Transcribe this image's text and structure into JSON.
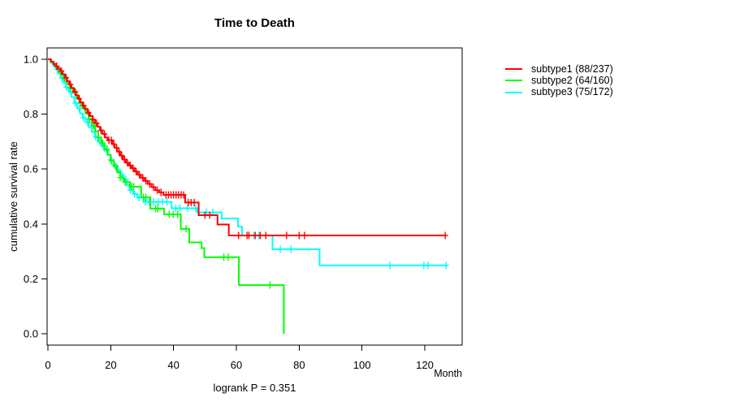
{
  "title": "Time to Death",
  "y_axis_label": "cumulative survival rate",
  "x_axis_label": "Month",
  "footnote": "logrank P = 0.351",
  "colors": {
    "axis": "#000000",
    "background": "#ffffff"
  },
  "chart_data": {
    "type": "line",
    "subtype": "kaplan-meier-step-survival",
    "title": "Time to Death",
    "xlabel": "Month",
    "ylabel": "cumulative survival rate",
    "xlim": [
      0,
      127
    ],
    "ylim": [
      0.0,
      1.0
    ],
    "grid": false,
    "legend_position": "right-outside",
    "x_ticks": [
      {
        "v": 0,
        "label": "0"
      },
      {
        "v": 20,
        "label": "20"
      },
      {
        "v": 40,
        "label": "40"
      },
      {
        "v": 60,
        "label": "60"
      },
      {
        "v": 80,
        "label": "80"
      },
      {
        "v": 100,
        "label": "100"
      },
      {
        "v": 120,
        "label": "120"
      }
    ],
    "y_ticks": [
      {
        "v": 0.0,
        "label": "0.0"
      },
      {
        "v": 0.2,
        "label": "0.2"
      },
      {
        "v": 0.4,
        "label": "0.4"
      },
      {
        "v": 0.6,
        "label": "0.6"
      },
      {
        "v": 0.8,
        "label": "0.8"
      },
      {
        "v": 1.0,
        "label": "1.0"
      }
    ],
    "annotation": "logrank P = 0.351",
    "series": [
      {
        "name": "subtype1 (88/237)",
        "events": "88/237",
        "color": "#FF0000",
        "points": [
          [
            0,
            1.0
          ],
          [
            0.9,
            0.992
          ],
          [
            1.7,
            0.983
          ],
          [
            2.5,
            0.975
          ],
          [
            3.2,
            0.966
          ],
          [
            4,
            0.957
          ],
          [
            4.7,
            0.945
          ],
          [
            5.4,
            0.933
          ],
          [
            6.1,
            0.92
          ],
          [
            6.8,
            0.908
          ],
          [
            7.5,
            0.895
          ],
          [
            8.2,
            0.882
          ],
          [
            8.9,
            0.869
          ],
          [
            9.6,
            0.856
          ],
          [
            10.3,
            0.844
          ],
          [
            11,
            0.831
          ],
          [
            11.8,
            0.818
          ],
          [
            12.6,
            0.806
          ],
          [
            13.4,
            0.793
          ],
          [
            14.2,
            0.78
          ],
          [
            15,
            0.767
          ],
          [
            15.8,
            0.754
          ],
          [
            16.6,
            0.741
          ],
          [
            17.4,
            0.728
          ],
          [
            18.2,
            0.715
          ],
          [
            19,
            0.705
          ],
          [
            20.5,
            0.691
          ],
          [
            21.3,
            0.677
          ],
          [
            22.1,
            0.663
          ],
          [
            23,
            0.649
          ],
          [
            23.9,
            0.635
          ],
          [
            24.8,
            0.623
          ],
          [
            25.7,
            0.613
          ],
          [
            26.6,
            0.603
          ],
          [
            27.6,
            0.591
          ],
          [
            28.6,
            0.579
          ],
          [
            29.6,
            0.568
          ],
          [
            30.7,
            0.557
          ],
          [
            31.8,
            0.546
          ],
          [
            33,
            0.534
          ],
          [
            34.2,
            0.523
          ],
          [
            35.4,
            0.515
          ],
          [
            36.8,
            0.506
          ],
          [
            43.7,
            0.478
          ],
          [
            48,
            0.432
          ],
          [
            54,
            0.398
          ],
          [
            57.6,
            0.358
          ],
          [
            126.5,
            0.358
          ]
        ],
        "censor_times": [
          2.8,
          4.3,
          5.8,
          7.2,
          8.6,
          10,
          11.4,
          12.9,
          14.4,
          15.5,
          16.9,
          18,
          19.4,
          20.2,
          21,
          21.9,
          22.7,
          23.5,
          24.4,
          25.3,
          26.2,
          27.1,
          28.1,
          29.1,
          30.2,
          31.2,
          32.4,
          33.6,
          34.8,
          36,
          37.6,
          38.4,
          39.2,
          40,
          40.8,
          41.6,
          42.4,
          43.2,
          44.7,
          45.6,
          46.6,
          50,
          51.5,
          60.7,
          63.4,
          64,
          66,
          67.6,
          69.4,
          76,
          80,
          81.7,
          126.5
        ]
      },
      {
        "name": "subtype2 (64/160)",
        "events": "64/160",
        "color": "#00FF00",
        "points": [
          [
            0,
            1.0
          ],
          [
            1,
            0.988
          ],
          [
            2,
            0.975
          ],
          [
            3,
            0.961
          ],
          [
            4,
            0.946
          ],
          [
            5,
            0.93
          ],
          [
            6,
            0.913
          ],
          [
            7,
            0.896
          ],
          [
            8,
            0.878
          ],
          [
            9,
            0.859
          ],
          [
            10,
            0.84
          ],
          [
            11,
            0.821
          ],
          [
            12,
            0.802
          ],
          [
            13,
            0.782
          ],
          [
            14,
            0.759
          ],
          [
            15,
            0.737
          ],
          [
            16,
            0.715
          ],
          [
            17,
            0.694
          ],
          [
            18,
            0.673
          ],
          [
            19,
            0.652
          ],
          [
            20,
            0.631
          ],
          [
            21,
            0.61
          ],
          [
            22,
            0.589
          ],
          [
            23,
            0.569
          ],
          [
            24.2,
            0.553
          ],
          [
            26.1,
            0.536
          ],
          [
            29.7,
            0.497
          ],
          [
            32.6,
            0.456
          ],
          [
            37,
            0.435
          ],
          [
            42.3,
            0.382
          ],
          [
            45,
            0.333
          ],
          [
            48.9,
            0.312
          ],
          [
            49.8,
            0.279
          ],
          [
            60.8,
            0.177
          ],
          [
            75.1,
            0
          ]
        ],
        "censor_times": [
          3.6,
          5.3,
          7.1,
          8.8,
          10.4,
          11.8,
          13.2,
          14.6,
          16,
          17.4,
          18.8,
          20.2,
          21.6,
          23,
          24.6,
          26.6,
          27.3,
          30.4,
          31.2,
          34.3,
          35,
          38.6,
          39.9,
          41.3,
          44,
          56,
          57.4,
          70.7
        ]
      },
      {
        "name": "subtype3 (75/172)",
        "events": "75/172",
        "color": "#00FFFF",
        "points": [
          [
            0,
            1.0
          ],
          [
            0.8,
            0.99
          ],
          [
            1.6,
            0.978
          ],
          [
            2.4,
            0.964
          ],
          [
            3.2,
            0.949
          ],
          [
            4,
            0.932
          ],
          [
            4.8,
            0.915
          ],
          [
            5.7,
            0.898
          ],
          [
            6.6,
            0.881
          ],
          [
            7.5,
            0.862
          ],
          [
            8.4,
            0.841
          ],
          [
            9.3,
            0.821
          ],
          [
            10.2,
            0.803
          ],
          [
            11.1,
            0.787
          ],
          [
            12,
            0.771
          ],
          [
            13,
            0.753
          ],
          [
            14,
            0.735
          ],
          [
            15,
            0.717
          ],
          [
            16,
            0.7
          ],
          [
            17,
            0.683
          ],
          [
            18,
            0.667
          ],
          [
            19,
            0.651
          ],
          [
            20,
            0.634
          ],
          [
            21,
            0.615
          ],
          [
            22,
            0.596
          ],
          [
            23,
            0.579
          ],
          [
            24,
            0.562
          ],
          [
            25,
            0.541
          ],
          [
            26,
            0.524
          ],
          [
            27.2,
            0.509
          ],
          [
            28.4,
            0.496
          ],
          [
            30.5,
            0.48
          ],
          [
            39.4,
            0.457
          ],
          [
            47.6,
            0.442
          ],
          [
            55.3,
            0.42
          ],
          [
            60.5,
            0.39
          ],
          [
            61.8,
            0.358
          ],
          [
            71.5,
            0.308
          ],
          [
            86.5,
            0.249
          ],
          [
            127,
            0.249
          ]
        ],
        "censor_times": [
          3,
          4.4,
          5.9,
          7.3,
          8.7,
          10,
          11.3,
          12.6,
          13.9,
          15.2,
          16.4,
          17.6,
          18.8,
          20,
          21.2,
          22.4,
          23.6,
          24.8,
          26.2,
          27.6,
          29,
          31,
          32.3,
          33.7,
          35.1,
          36.5,
          37.9,
          40.7,
          42,
          44.5,
          47,
          50.5,
          52.5,
          64,
          65.6,
          67.2,
          74,
          77.4,
          108.9,
          119.7,
          121,
          126.8
        ]
      }
    ]
  }
}
